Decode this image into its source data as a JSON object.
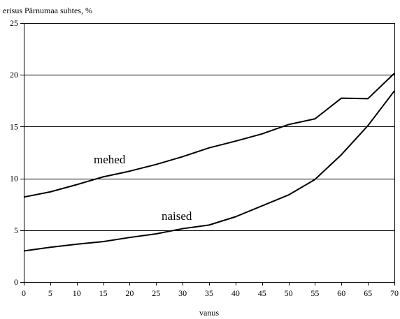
{
  "chart_data": {
    "type": "line",
    "ylabel": "erisus Pärnumaa suhtes, %",
    "xlabel": "vanus",
    "xlim": [
      0,
      70
    ],
    "ylim": [
      0,
      25
    ],
    "x_ticks": [
      "0",
      "5",
      "10",
      "15",
      "20",
      "25",
      "30",
      "35",
      "40",
      "45",
      "50",
      "55",
      "60",
      "65",
      "70"
    ],
    "y_ticks": [
      "0",
      "5",
      "10",
      "15",
      "20",
      "25"
    ],
    "grid": "horizontal",
    "x": [
      0,
      5,
      10,
      15,
      20,
      25,
      30,
      35,
      40,
      45,
      50,
      55,
      60,
      65,
      70
    ],
    "series": [
      {
        "name": "mehed",
        "values": [
          8.2,
          8.7,
          9.4,
          10.15,
          10.7,
          11.35,
          12.1,
          12.95,
          13.6,
          14.3,
          15.2,
          15.75,
          17.75,
          17.7,
          20.15
        ]
      },
      {
        "name": "naised",
        "values": [
          3.0,
          3.35,
          3.65,
          3.9,
          4.3,
          4.65,
          5.15,
          5.5,
          6.3,
          7.35,
          8.4,
          9.9,
          12.3,
          15.1,
          18.45
        ]
      }
    ]
  }
}
